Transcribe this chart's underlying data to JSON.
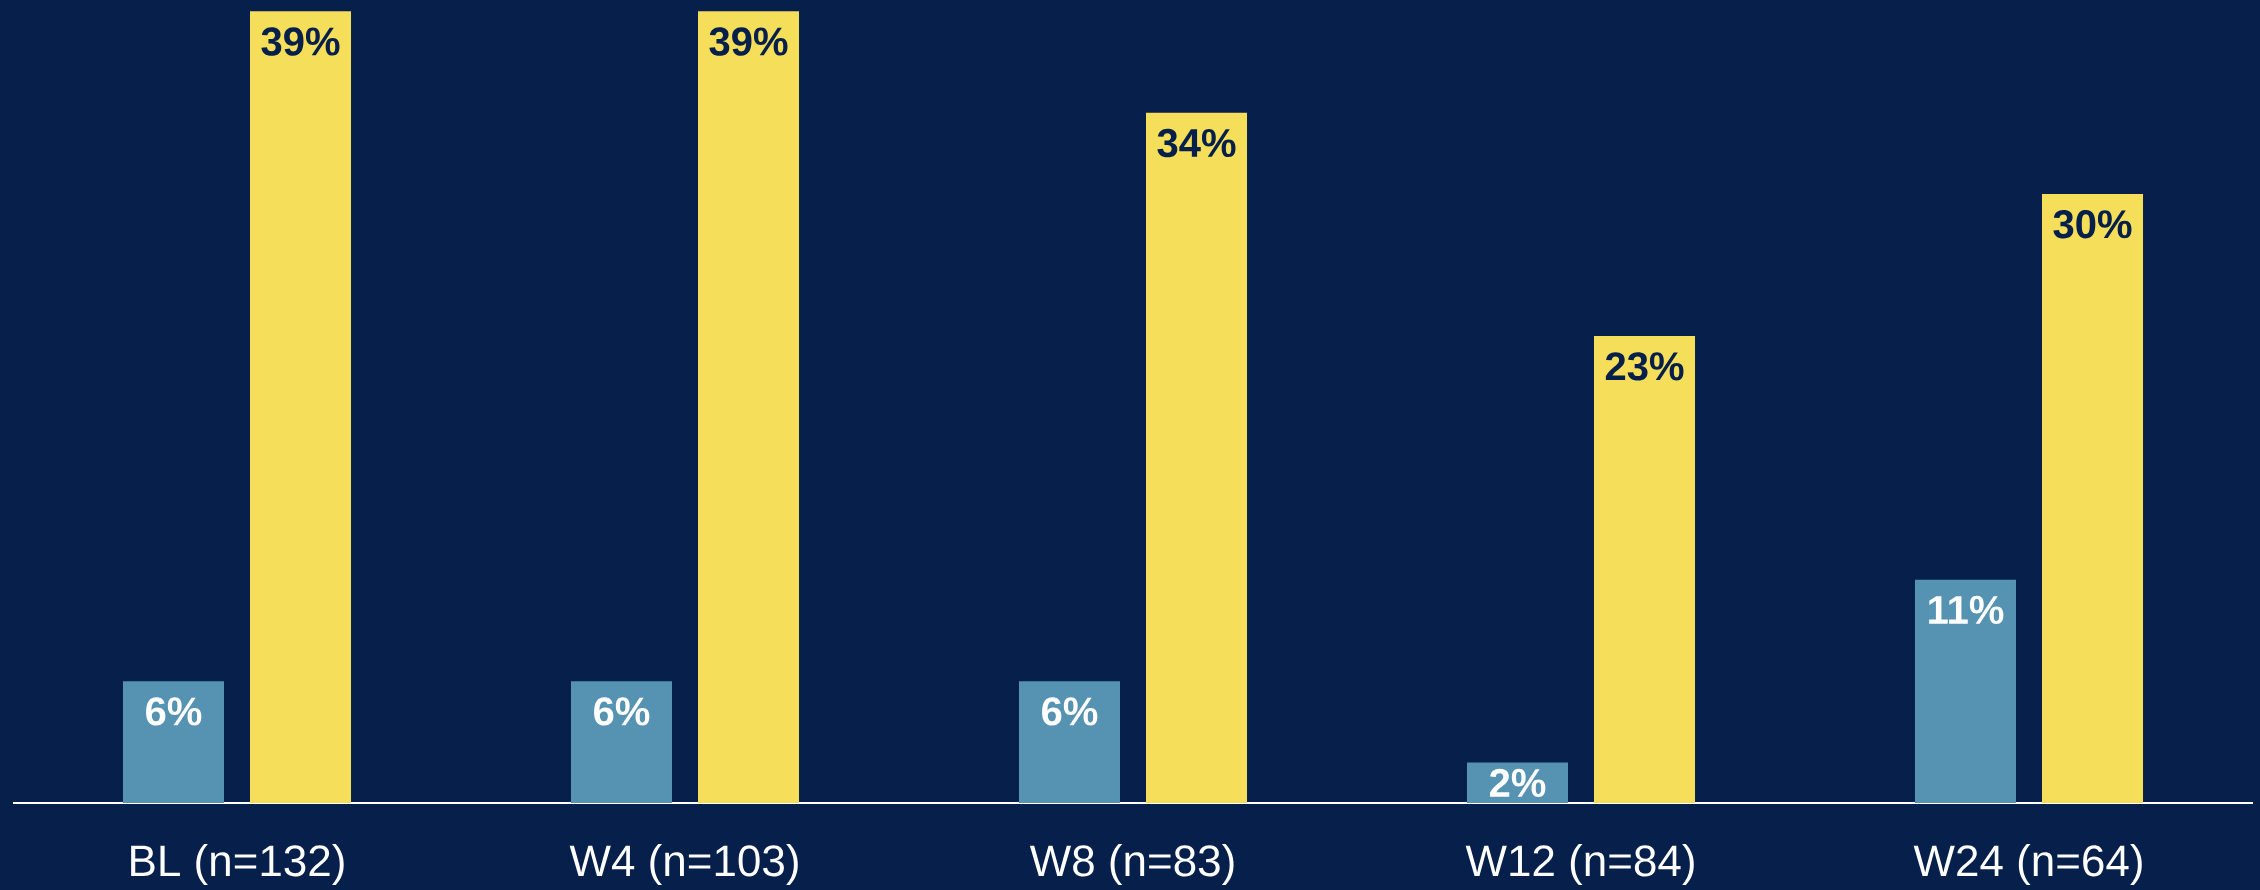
{
  "chart_data": {
    "type": "bar",
    "categories": [
      "BL (n=132)",
      "W4 (n=103)",
      "W8 (n=83)",
      "W12 (n=84)",
      "W24 (n=64)"
    ],
    "series": [
      {
        "color": "#5693b3",
        "values": [
          6,
          6,
          6,
          2,
          11
        ],
        "value_labels": [
          "6%",
          "6%",
          "6%",
          "2%",
          "11%"
        ]
      },
      {
        "color": "#f5df5a",
        "values": [
          39,
          39,
          34,
          23,
          30
        ],
        "value_labels": [
          "39%",
          "39%",
          "34%",
          "23%",
          "30%"
        ]
      }
    ]
  }
}
